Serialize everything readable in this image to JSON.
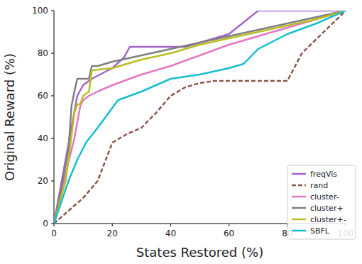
{
  "chart_data": {
    "type": "line",
    "x_label": "States Restored (%)",
    "y_label": "Original Reward (%)",
    "xlim": [
      0,
      100
    ],
    "ylim": [
      0,
      100
    ],
    "xticks": [
      0,
      20,
      40,
      60,
      80,
      100
    ],
    "yticks": [
      0,
      20,
      40,
      60,
      80,
      100
    ],
    "grid": false,
    "legend": "lower right",
    "series": [
      {
        "name": "freqVis",
        "color": "#a066c8",
        "line_style": "solid",
        "x": [
          0,
          8,
          10,
          13,
          20,
          24,
          26,
          35,
          45,
          55,
          60,
          70,
          100
        ],
        "values": [
          0,
          60,
          65,
          68,
          73,
          78,
          83,
          83,
          83,
          87,
          89,
          100,
          100
        ]
      },
      {
        "name": "rand",
        "color": "#8c564b",
        "line_style": "dashed",
        "x": [
          0,
          10,
          15,
          20,
          25,
          30,
          35,
          40,
          45,
          50,
          55,
          70,
          80,
          85,
          100
        ],
        "values": [
          0,
          12,
          20,
          38,
          42,
          45,
          52,
          60,
          64,
          66,
          67,
          67,
          67,
          80,
          100
        ]
      },
      {
        "name": "cluster-",
        "color": "#e377c2",
        "line_style": "solid",
        "x": [
          0,
          5,
          7,
          9,
          10,
          12,
          15,
          20,
          30,
          40,
          50,
          60,
          70,
          80,
          90,
          100
        ],
        "values": [
          0,
          29,
          40,
          55,
          58,
          60,
          62,
          65,
          70,
          74,
          79,
          84,
          88,
          92,
          96,
          100
        ]
      },
      {
        "name": "cluster+",
        "color": "#7f7f7f",
        "line_style": "solid",
        "x": [
          0,
          3,
          5,
          6,
          7,
          8,
          12,
          13,
          15,
          20,
          30,
          40,
          50,
          60,
          70,
          80,
          90,
          100
        ],
        "values": [
          0,
          20,
          35,
          55,
          62,
          68,
          68,
          74,
          74,
          76,
          79,
          82,
          85,
          88,
          91,
          94,
          97,
          100
        ]
      },
      {
        "name": "cluster+-",
        "color": "#bcbd22",
        "line_style": "solid",
        "x": [
          0,
          4,
          5,
          7,
          8,
          9,
          10,
          12,
          13,
          20,
          30,
          40,
          50,
          60,
          70,
          80,
          90,
          100
        ],
        "values": [
          0,
          20,
          30,
          52,
          56,
          56,
          60,
          62,
          72,
          73,
          77,
          80,
          84,
          87,
          90,
          93,
          96,
          100
        ]
      },
      {
        "name": "SBFL",
        "color": "#17becf",
        "line_style": "solid",
        "x": [
          0,
          5,
          8,
          11,
          15,
          22,
          30,
          40,
          50,
          60,
          65,
          70,
          80,
          90,
          100
        ],
        "values": [
          0,
          20,
          30,
          38,
          45,
          58,
          62,
          68,
          70,
          73,
          75,
          82,
          89,
          94,
          100
        ]
      }
    ]
  }
}
